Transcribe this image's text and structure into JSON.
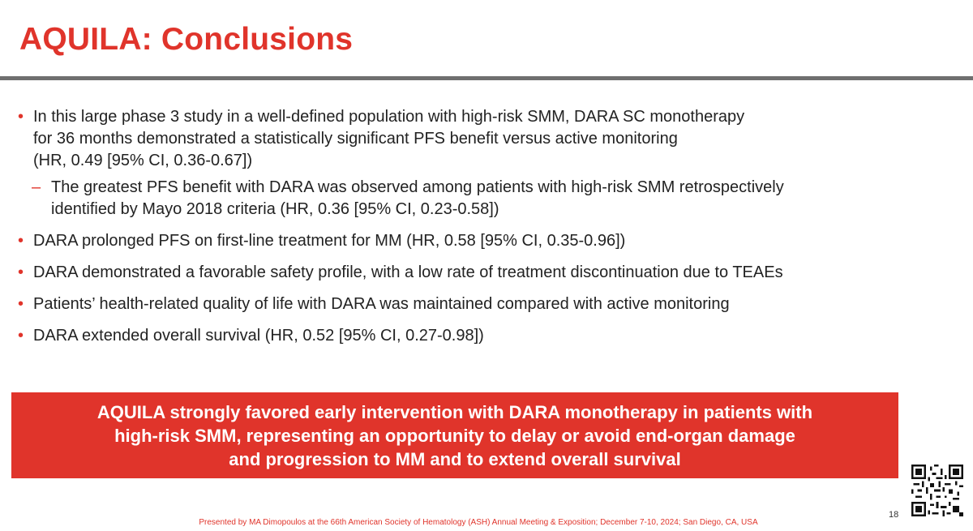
{
  "slide": {
    "title": "AQUILA: Conclusions",
    "bullet_marker": "•",
    "sub_marker": "–",
    "bullets": [
      {
        "lines": [
          "In this large phase 3 study in a well-defined population with high-risk SMM, DARA SC monotherapy",
          "for 36 months demonstrated a statistically significant PFS benefit versus active monitoring",
          "(HR, 0.49 [95% CI, 0.36-0.67])"
        ],
        "sub": {
          "lines": [
            "The greatest PFS benefit with DARA was observed among patients with high-risk SMM retrospectively",
            "identified by Mayo 2018 criteria (HR, 0.36 [95% CI, 0.23-0.58])"
          ]
        }
      },
      {
        "text": "DARA prolonged PFS on first-line treatment for MM (HR, 0.58 [95% CI, 0.35-0.96])"
      },
      {
        "text": "DARA demonstrated a favorable safety profile, with a low rate of treatment discontinuation due to TEAEs"
      },
      {
        "text": "Patients’ health-related quality of life with DARA was maintained compared with active monitoring"
      },
      {
        "text": "DARA extended overall survival (HR, 0.52 [95% CI, 0.27-0.98])"
      }
    ],
    "callout": {
      "lines": [
        "AQUILA strongly favored early intervention with DARA monotherapy in patients with",
        "high-risk SMM, representing an opportunity to delay or avoid end-organ damage",
        "and progression to MM and to extend overall survival"
      ]
    },
    "page_number": "18",
    "footer": "Presented by MA Dimopoulos at the 66th American Society of Hematology (ASH) Annual Meeting & Exposition; December 7-10, 2024; San Diego, CA, USA"
  },
  "colors": {
    "accent_red": "#e0342b",
    "rule_gray": "#6f6f6f",
    "body_text": "#222222"
  },
  "icons": {
    "qr": "qr-code-icon"
  }
}
